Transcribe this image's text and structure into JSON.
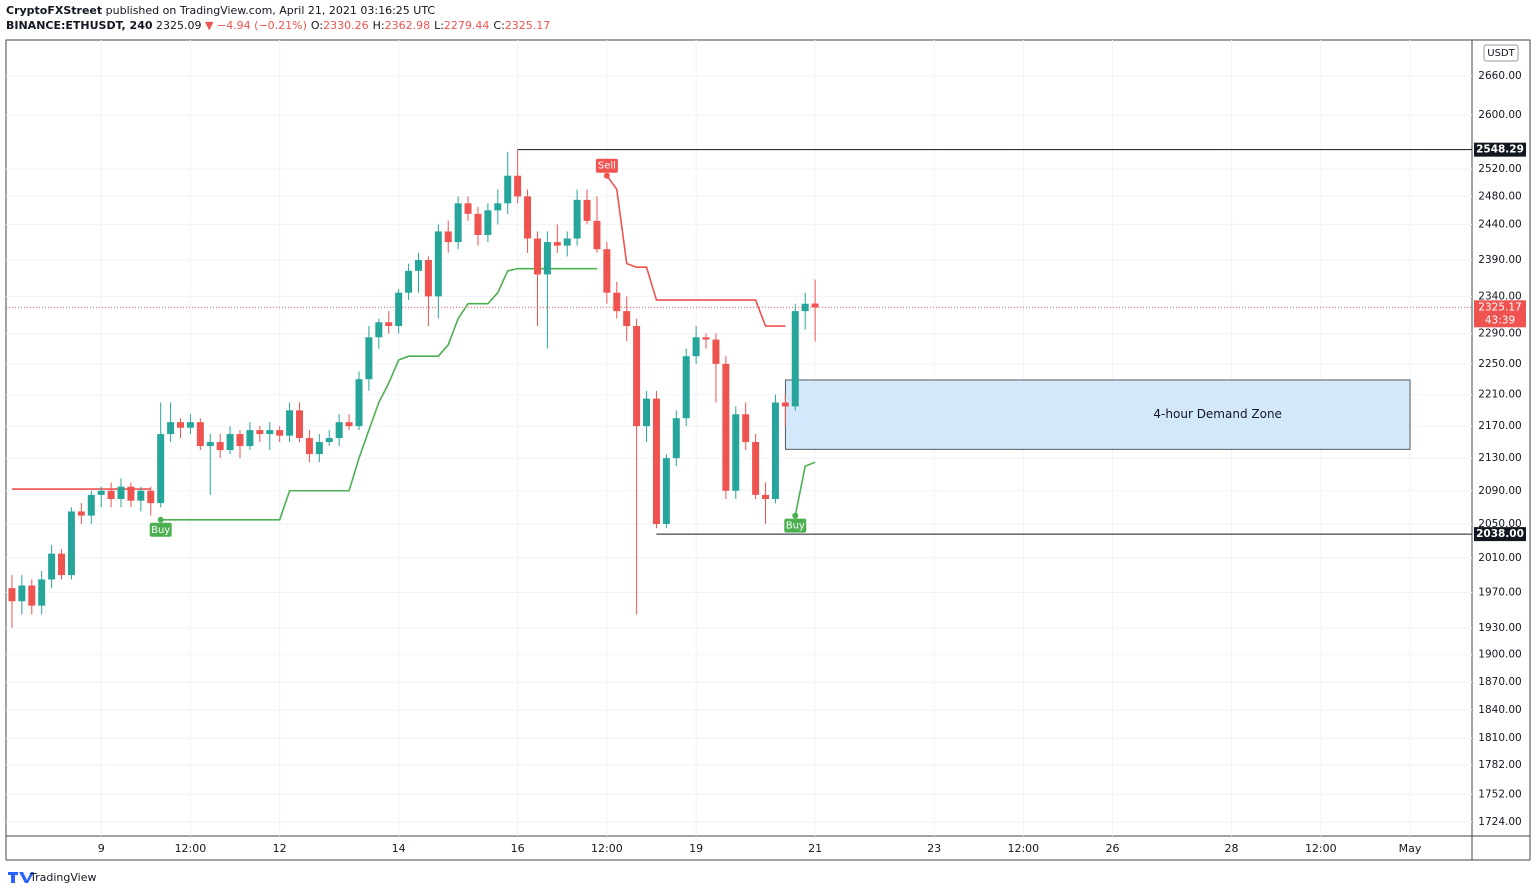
{
  "header": {
    "author": "CryptoFXStreet",
    "published": "published on TradingView.com, April 21, 2021 03:16:25 UTC",
    "symbol": "BINANCE:ETHUSDT, 240",
    "last": "2325.09",
    "change": "▼ −4.94 (−0.21%)",
    "quote": [
      {
        "key": "O:",
        "value": "2330.26"
      },
      {
        "key": "H:",
        "value": "2362.98"
      },
      {
        "key": "L:",
        "value": "2279.44"
      },
      {
        "key": "C:",
        "value": "2325.17"
      }
    ]
  },
  "footer": "TradingView",
  "chart_data": {
    "type": "candlestick",
    "currency": "USDT",
    "log_scale": true,
    "grid": true,
    "up_color": "#26a69a",
    "down_color": "#ef5350",
    "xlim": [
      153.6,
      745
    ],
    "ylim": [
      1710,
      2716
    ],
    "xticks": [
      {
        "value": 192,
        "label": "9"
      },
      {
        "value": 228,
        "label": "12:00"
      },
      {
        "value": 264,
        "label": "12"
      },
      {
        "value": 312,
        "label": "14"
      },
      {
        "value": 360,
        "label": "16"
      },
      {
        "value": 396,
        "label": "12:00"
      },
      {
        "value": 432,
        "label": "19"
      },
      {
        "value": 480,
        "label": "21"
      },
      {
        "value": 528,
        "label": "23"
      },
      {
        "value": 564,
        "label": "12:00"
      },
      {
        "value": 600,
        "label": "26"
      },
      {
        "value": 648,
        "label": "28"
      },
      {
        "value": 684,
        "label": "12:00"
      },
      {
        "value": 720,
        "label": "May"
      }
    ],
    "yticks": [
      {
        "value": 1724,
        "label": "1724.00"
      },
      {
        "value": 1752,
        "label": "1752.00"
      },
      {
        "value": 1782,
        "label": "1782.00"
      },
      {
        "value": 1810,
        "label": "1810.00"
      },
      {
        "value": 1840,
        "label": "1840.00"
      },
      {
        "value": 1870,
        "label": "1870.00"
      },
      {
        "value": 1900,
        "label": "1900.00"
      },
      {
        "value": 1930,
        "label": "1930.00"
      },
      {
        "value": 1970,
        "label": "1970.00"
      },
      {
        "value": 2010,
        "label": "2010.00"
      },
      {
        "value": 2050,
        "label": "2050.00"
      },
      {
        "value": 2090,
        "label": "2090.00"
      },
      {
        "value": 2130,
        "label": "2130.00"
      },
      {
        "value": 2170,
        "label": "2170.00"
      },
      {
        "value": 2210,
        "label": "2210.00"
      },
      {
        "value": 2250,
        "label": "2250.00"
      },
      {
        "value": 2290,
        "label": "2290.00"
      },
      {
        "value": 2340,
        "label": "2340.00"
      },
      {
        "value": 2390,
        "label": "2390.00"
      },
      {
        "value": 2440,
        "label": "2440.00"
      },
      {
        "value": 2480,
        "label": "2480.00"
      },
      {
        "value": 2520,
        "label": "2520.00"
      },
      {
        "value": 2600,
        "label": "2600.00"
      },
      {
        "value": 2660,
        "label": "2660.00"
      }
    ],
    "x": [
      156,
      160,
      164,
      168,
      172,
      176,
      180,
      184,
      188,
      192,
      196,
      200,
      204,
      208,
      212,
      216,
      220,
      224,
      228,
      232,
      236,
      240,
      244,
      248,
      252,
      256,
      260,
      264,
      268,
      272,
      276,
      280,
      284,
      288,
      292,
      296,
      300,
      304,
      308,
      312,
      316,
      320,
      324,
      328,
      332,
      336,
      340,
      344,
      348,
      352,
      356,
      360,
      364,
      368,
      372,
      376,
      380,
      384,
      388,
      392,
      396,
      400,
      404,
      408,
      412,
      416,
      420,
      424,
      428,
      432,
      436,
      440,
      444,
      448,
      452,
      456,
      460,
      464,
      468,
      472,
      476,
      480
    ],
    "open": [
      1975,
      1960,
      1978,
      1955,
      1985,
      2015,
      1990,
      2065,
      2060,
      2085,
      2090,
      2080,
      2095,
      2078,
      2090,
      2075,
      2160,
      2175,
      2168,
      2175,
      2145,
      2150,
      2140,
      2160,
      2145,
      2165,
      2160,
      2165,
      2158,
      2190,
      2155,
      2135,
      2150,
      2155,
      2175,
      2170,
      2230,
      2285,
      2305,
      2300,
      2345,
      2375,
      2390,
      2340,
      2430,
      2415,
      2470,
      2455,
      2425,
      2460,
      2470,
      2510,
      2480,
      2420,
      2370,
      2415,
      2410,
      2420,
      2475,
      2445,
      2405,
      2345,
      2320,
      2300,
      2170,
      2205,
      2050,
      2130,
      2180,
      2260,
      2285,
      2282,
      2250,
      2090,
      2185,
      2150,
      2085,
      2080,
      2200,
      2195,
      2320,
      2330.26
    ],
    "high": [
      1990,
      1990,
      1985,
      1995,
      2025,
      2020,
      2070,
      2075,
      2090,
      2095,
      2100,
      2105,
      2100,
      2095,
      2095,
      2200,
      2200,
      2180,
      2185,
      2180,
      2160,
      2160,
      2170,
      2165,
      2175,
      2170,
      2175,
      2170,
      2200,
      2200,
      2165,
      2160,
      2165,
      2185,
      2185,
      2240,
      2300,
      2310,
      2320,
      2350,
      2385,
      2400,
      2395,
      2440,
      2445,
      2480,
      2480,
      2465,
      2470,
      2490,
      2545,
      2548.29,
      2490,
      2430,
      2430,
      2440,
      2430,
      2490,
      2490,
      2480,
      2415,
      2360,
      2340,
      2310,
      2215,
      2215,
      2135,
      2190,
      2270,
      2300,
      2290,
      2290,
      2260,
      2195,
      2200,
      2160,
      2100,
      2210,
      2210,
      2330,
      2345,
      2362.98
    ],
    "low": [
      1930,
      1945,
      1945,
      1945,
      1975,
      1985,
      1985,
      2050,
      2050,
      2070,
      2070,
      2070,
      2070,
      2065,
      2060,
      2070,
      2150,
      2155,
      2160,
      2140,
      2085,
      2130,
      2135,
      2130,
      2140,
      2150,
      2140,
      2150,
      2150,
      2150,
      2125,
      2125,
      2145,
      2145,
      2165,
      2165,
      2215,
      2270,
      2290,
      2290,
      2335,
      2345,
      2300,
      2310,
      2400,
      2405,
      2445,
      2410,
      2415,
      2440,
      2455,
      2470,
      2400,
      2300,
      2270,
      2400,
      2395,
      2410,
      2440,
      2400,
      2330,
      2310,
      2280,
      1945,
      2150,
      2045,
      2045,
      2120,
      2170,
      2250,
      2270,
      2200,
      2080,
      2080,
      2140,
      2080,
      2050,
      2075,
      2170,
      2190,
      2295,
      2279.44
    ],
    "close": [
      1960,
      1978,
      1955,
      1985,
      2015,
      1990,
      2065,
      2060,
      2085,
      2090,
      2080,
      2095,
      2078,
      2090,
      2075,
      2160,
      2175,
      2168,
      2175,
      2145,
      2150,
      2140,
      2160,
      2145,
      2165,
      2160,
      2165,
      2158,
      2190,
      2155,
      2135,
      2150,
      2155,
      2175,
      2170,
      2230,
      2285,
      2305,
      2300,
      2345,
      2375,
      2390,
      2340,
      2430,
      2415,
      2470,
      2455,
      2425,
      2460,
      2470,
      2510,
      2480,
      2420,
      2370,
      2415,
      2410,
      2420,
      2475,
      2445,
      2405,
      2345,
      2320,
      2300,
      2170,
      2205,
      2050,
      2130,
      2180,
      2260,
      2285,
      2282,
      2250,
      2090,
      2185,
      2150,
      2085,
      2080,
      2200,
      2195,
      2320,
      2330,
      2325.17
    ],
    "series": [
      {
        "color": "#4caf50",
        "values": [
          null,
          null,
          null,
          null,
          null,
          null,
          null,
          null,
          null,
          null,
          null,
          null,
          null,
          null,
          null,
          2055,
          2055,
          2055,
          2055,
          2055,
          2055,
          2055,
          2055,
          2055,
          2055,
          2055,
          2055,
          2055,
          2090,
          2090,
          2090,
          2090,
          2090,
          2090,
          2090,
          2130,
          2165,
          2200,
          2225,
          2255,
          2260,
          2260,
          2260,
          2260,
          2275,
          2310,
          2330,
          2330,
          2330,
          2345,
          2375,
          2378,
          2378,
          2378,
          2378,
          2378,
          2378,
          2378,
          2378,
          2378,
          null,
          null,
          null,
          null,
          null,
          null,
          null,
          null,
          null,
          null,
          null,
          null,
          null,
          null,
          null,
          null,
          null,
          null,
          null,
          2060,
          2120,
          2125
        ]
      },
      {
        "color": "#f05350",
        "values": [
          2092,
          2092,
          2092,
          2092,
          2092,
          2092,
          2092,
          2092,
          2092,
          2092,
          2092,
          2092,
          2092,
          2092,
          2092,
          null,
          null,
          null,
          null,
          null,
          null,
          null,
          null,
          null,
          null,
          null,
          null,
          null,
          null,
          null,
          null,
          null,
          null,
          null,
          null,
          null,
          null,
          null,
          null,
          null,
          null,
          null,
          null,
          null,
          null,
          null,
          null,
          null,
          null,
          null,
          null,
          null,
          null,
          null,
          null,
          null,
          null,
          null,
          null,
          null,
          2510,
          2490,
          2385,
          2380,
          2380,
          2335,
          2335,
          2335,
          2335,
          2335,
          2335,
          2335,
          2335,
          2335,
          2335,
          2335,
          2300,
          2300,
          2300,
          null,
          null,
          null
        ]
      }
    ],
    "signals": [
      {
        "text": "Buy",
        "x": 216,
        "y": 2055,
        "color": "#4caf50"
      },
      {
        "text": "Sell",
        "x": 396,
        "y": 2510,
        "color": "#f05350"
      },
      {
        "text": "Buy",
        "x": 472,
        "y": 2060,
        "color": "#4caf50"
      }
    ],
    "levels": [
      {
        "value": 2548.29,
        "label": "2548.29",
        "x0": 360
      },
      {
        "value": 2038,
        "label": "2038.00",
        "x0": 416
      }
    ],
    "zone": {
      "text": "4-hour Demand Zone",
      "x0": 468,
      "x1": 720,
      "y0": 2141,
      "y1": 2229,
      "color": "#d3e9fb"
    },
    "last_price": {
      "value": 2325.17,
      "label": "2325.17",
      "countdown": "43:39",
      "color": "#ef5350"
    }
  }
}
